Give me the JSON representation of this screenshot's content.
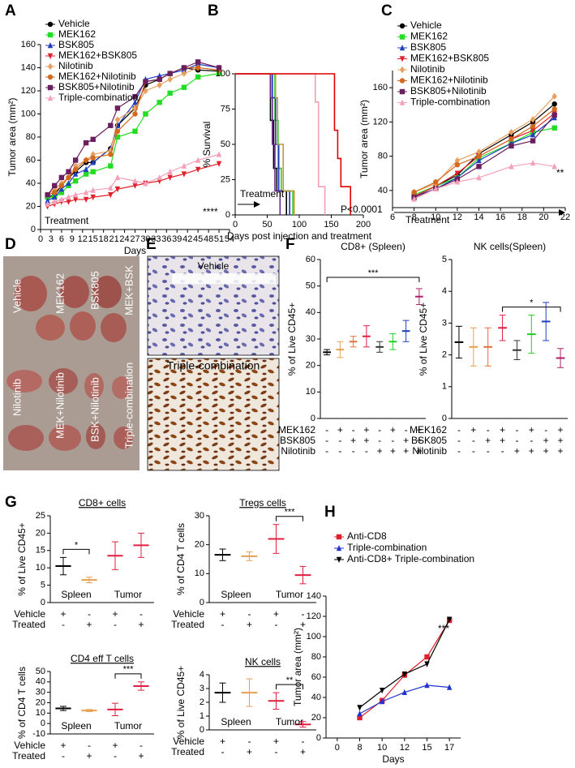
{
  "chart_data": [
    {
      "type": "line",
      "panel": "A",
      "xlabel": "Days",
      "ylabel": "Tumor area (mm²)",
      "xlim": [
        0,
        54
      ],
      "xticks": [
        0,
        3,
        6,
        9,
        12,
        15,
        18,
        21,
        24,
        27,
        30,
        33,
        36,
        39,
        42,
        45,
        48,
        51,
        54
      ],
      "ylim": [
        0,
        160
      ],
      "yticks": [
        0,
        20,
        40,
        60,
        80,
        100,
        120,
        140,
        160
      ],
      "x": [
        2,
        4,
        6,
        8,
        10,
        13,
        15,
        20,
        22,
        27,
        30,
        34,
        37,
        41,
        45,
        51
      ],
      "legend": true,
      "annotations": [
        "Treatment",
        "****"
      ],
      "series": [
        {
          "name": "Vehicle",
          "color": "#000000",
          "marker": "circle",
          "values": [
            28,
            30,
            38,
            45,
            50,
            58,
            58,
            70,
            90,
            105,
            125,
            130,
            135,
            140,
            138,
            137
          ]
        },
        {
          "name": "MEK162",
          "color": "#22dd22",
          "marker": "square",
          "values": [
            28,
            28,
            32,
            38,
            42,
            48,
            50,
            55,
            80,
            85,
            100,
            110,
            118,
            123,
            132,
            135
          ]
        },
        {
          "name": "BSK805",
          "color": "#1f3fbf",
          "marker": "triangle",
          "values": [
            25,
            28,
            35,
            40,
            48,
            52,
            58,
            70,
            90,
            110,
            130,
            133,
            135,
            138,
            143,
            140
          ]
        },
        {
          "name": "MEK162+BSK805",
          "color": "#e0202a",
          "marker": "triangle-down",
          "values": [
            20,
            22,
            24,
            24,
            26,
            26,
            28,
            30,
            35,
            38,
            40,
            42,
            45,
            48,
            52,
            57
          ]
        },
        {
          "name": "Nilotinib",
          "color": "#e8a060",
          "marker": "diamond",
          "values": [
            30,
            35,
            40,
            45,
            55,
            60,
            65,
            68,
            95,
            105,
            120,
            125,
            130,
            135,
            140,
            138
          ]
        },
        {
          "name": "MEK162+Nilotinib",
          "color": "#d2691e",
          "marker": "circle",
          "values": [
            30,
            32,
            38,
            45,
            52,
            60,
            62,
            65,
            85,
            100,
            128,
            130,
            135,
            140,
            140,
            138
          ]
        },
        {
          "name": "BSK805+Nilotinib",
          "color": "#6b1f5f",
          "marker": "square",
          "values": [
            30,
            38,
            45,
            50,
            60,
            75,
            78,
            90,
            105,
            115,
            128,
            130,
            135,
            140,
            145,
            140
          ]
        },
        {
          "name": "Triple-combination",
          "color": "#f4a0b8",
          "marker": "triangle",
          "values": [
            22,
            24,
            26,
            28,
            30,
            32,
            34,
            36,
            45,
            42,
            40,
            45,
            50,
            55,
            60,
            65
          ]
        }
      ]
    },
    {
      "type": "step",
      "panel": "B",
      "xlabel": "Days post injection and treatment",
      "ylabel": "% Survival",
      "xlim": [
        0,
        200
      ],
      "xticks": [
        0,
        50,
        100,
        150,
        200
      ],
      "ylim": [
        0,
        100
      ],
      "yticks": [
        0,
        25,
        50,
        75,
        100
      ],
      "annotations": [
        "Treatment",
        "P<0.0001"
      ],
      "series": [
        {
          "color": "#000000",
          "x": [
            0,
            55,
            60,
            65,
            80
          ],
          "values": [
            100,
            67,
            33,
            17,
            0
          ]
        },
        {
          "color": "#33cc33",
          "x": [
            0,
            62,
            67,
            72,
            90
          ],
          "values": [
            100,
            67,
            33,
            17,
            0
          ]
        },
        {
          "color": "#2233cc",
          "x": [
            0,
            58,
            63,
            68,
            85
          ],
          "values": [
            100,
            83,
            50,
            17,
            0
          ]
        },
        {
          "color": "#6b2a8a",
          "x": [
            0,
            55,
            58,
            62,
            70
          ],
          "values": [
            100,
            83,
            50,
            17,
            0
          ]
        },
        {
          "color": "#b8a030",
          "x": [
            0,
            63,
            66,
            75,
            92
          ],
          "values": [
            100,
            83,
            50,
            17,
            0
          ]
        },
        {
          "color": "#f0a0b0",
          "x": [
            0,
            125,
            130,
            140
          ],
          "values": [
            100,
            80,
            20,
            0
          ]
        },
        {
          "color": "#e00000",
          "x": [
            0,
            155,
            160,
            165,
            180
          ],
          "values": [
            100,
            60,
            40,
            20,
            0
          ]
        }
      ]
    },
    {
      "type": "line",
      "panel": "C",
      "ylabel": "Tumor area (mm²)",
      "xlim": [
        6,
        22
      ],
      "xticks": [
        6,
        8,
        10,
        12,
        14,
        16,
        18,
        20,
        22
      ],
      "ylim": [
        20,
        180
      ],
      "yticks": [
        40,
        80,
        120,
        160
      ],
      "x": [
        8,
        10,
        12,
        14,
        17,
        19,
        21
      ],
      "legend": true,
      "annotations": [
        "Treatment",
        "**"
      ],
      "series": [
        {
          "name": "Vehicle",
          "color": "#000000",
          "marker": "circle",
          "values": [
            33,
            45,
            58,
            83,
            105,
            120,
            141
          ]
        },
        {
          "name": "MEK162",
          "color": "#22dd22",
          "marker": "square",
          "values": [
            35,
            45,
            55,
            78,
            95,
            108,
            113
          ]
        },
        {
          "name": "BSK805",
          "color": "#1f3fbf",
          "marker": "triangle",
          "values": [
            33,
            42,
            55,
            75,
            95,
            105,
            125
          ]
        },
        {
          "name": "MEK162+BSK805",
          "color": "#e0202a",
          "marker": "triangle-down",
          "values": [
            33,
            45,
            60,
            80,
            100,
            110,
            130
          ]
        },
        {
          "name": "Nilotinib",
          "color": "#e8a060",
          "marker": "diamond",
          "values": [
            38,
            48,
            75,
            85,
            108,
            123,
            150
          ]
        },
        {
          "name": "MEK162+Nilotinib",
          "color": "#d2691e",
          "marker": "circle",
          "values": [
            38,
            50,
            70,
            80,
            100,
            115,
            135
          ]
        },
        {
          "name": "BSK805+Nilotinib",
          "color": "#6b1f5f",
          "marker": "square",
          "values": [
            32,
            42,
            53,
            68,
            92,
            98,
            128
          ]
        },
        {
          "name": "Triple-combination",
          "color": "#f4a0b8",
          "marker": "triangle",
          "values": [
            30,
            42,
            50,
            55,
            68,
            72,
            68
          ]
        }
      ]
    },
    {
      "type": "dot",
      "panel": "F",
      "title": "CD8+ (Spleen)",
      "ylabel": "% of Live CD45+",
      "ylim": [
        0,
        60
      ],
      "yticks": [
        0,
        10,
        20,
        30,
        40,
        50,
        60
      ],
      "significance": "***",
      "values": [
        25,
        26,
        29,
        31,
        27,
        29,
        33,
        46
      ],
      "errors": [
        1,
        3,
        2,
        4,
        2,
        3,
        4,
        3
      ],
      "colors": [
        "#000000",
        "#e8a050",
        "#e07040",
        "#e02040",
        "#333333",
        "#22cc22",
        "#1f3fbf",
        "#b0206a"
      ],
      "rows": [
        {
          "name": "MEK162",
          "marks": [
            "-",
            "+",
            "-",
            "+",
            "-",
            "+",
            "-",
            "+"
          ]
        },
        {
          "name": "BSK805",
          "marks": [
            "-",
            "-",
            "+",
            "+",
            "-",
            "-",
            "+",
            "+"
          ]
        },
        {
          "name": "Nilotinib",
          "marks": [
            "-",
            "-",
            "-",
            "-",
            "+",
            "+",
            "+",
            "+"
          ]
        }
      ]
    },
    {
      "type": "dot",
      "title": "NK cells(Spleen)",
      "ylabel": "% of Live CD45+",
      "ylim": [
        0,
        5
      ],
      "yticks": [
        0,
        1,
        2,
        3,
        4,
        5
      ],
      "significance": "*",
      "values": [
        2.4,
        2.25,
        2.25,
        2.85,
        2.15,
        2.65,
        3.05,
        1.9
      ],
      "errors": [
        0.5,
        0.6,
        0.6,
        0.4,
        0.3,
        0.6,
        0.6,
        0.3
      ],
      "colors": [
        "#000000",
        "#e8a050",
        "#e07040",
        "#e02040",
        "#333333",
        "#22cc22",
        "#1f3fbf",
        "#b0206a"
      ],
      "rows": [
        {
          "name": "MEK162",
          "marks": [
            "-",
            "+",
            "-",
            "+",
            "-",
            "+",
            "-",
            "+"
          ]
        },
        {
          "name": "BSK805",
          "marks": [
            "-",
            "-",
            "+",
            "+",
            "-",
            "-",
            "+",
            "+"
          ]
        },
        {
          "name": "Nilotinib",
          "marks": [
            "-",
            "-",
            "-",
            "-",
            "+",
            "+",
            "+",
            "+"
          ]
        }
      ]
    },
    {
      "type": "dot",
      "panel": "G",
      "title": "CD8+ cells",
      "ylabel": "% of Live CD45+",
      "ylim": [
        0,
        25
      ],
      "yticks": [
        0,
        5,
        10,
        15,
        20,
        25
      ],
      "significance": "*",
      "values": [
        10.5,
        6.5,
        13.5,
        16.5
      ],
      "errors": [
        2.5,
        0.8,
        4,
        3.5
      ],
      "colors": [
        "#000000",
        "#e8a050",
        "#e02040",
        "#e02040"
      ],
      "group_labels": [
        "Spleen",
        "Tumor"
      ],
      "rows": [
        {
          "name": "Vehicle",
          "marks": [
            "+",
            "-",
            "+",
            "-"
          ]
        },
        {
          "name": "Treated",
          "marks": [
            "-",
            "+",
            "-",
            "+"
          ]
        }
      ]
    },
    {
      "type": "dot",
      "title": "Tregs cells",
      "ylabel": "% of CD4 T cells",
      "ylim": [
        0,
        30
      ],
      "yticks": [
        0,
        10,
        20,
        30
      ],
      "significance": "***",
      "values": [
        16.5,
        16,
        22,
        9.5
      ],
      "errors": [
        2,
        1.5,
        5,
        3
      ],
      "colors": [
        "#000000",
        "#e8a050",
        "#e02040",
        "#e02040"
      ],
      "group_labels": [
        "Spleen",
        "Tumor"
      ],
      "rows": [
        {
          "name": "Vehicle",
          "marks": [
            "+",
            "-",
            "+",
            "-"
          ]
        },
        {
          "name": "Treated",
          "marks": [
            "-",
            "+",
            "-",
            "+"
          ]
        }
      ]
    },
    {
      "type": "dot",
      "title": "CD4 eff T cells",
      "ylabel": "% of CD4 T cells",
      "ylim": [
        -10,
        50
      ],
      "yticks": [
        -10,
        0,
        10,
        20,
        30,
        40,
        50
      ],
      "significance": "***",
      "values": [
        14.5,
        12.5,
        13.5,
        36
      ],
      "errors": [
        2,
        1,
        6,
        4
      ],
      "colors": [
        "#000000",
        "#e8a050",
        "#e02040",
        "#e02040"
      ],
      "group_labels": [
        "Spleen",
        "Tumor"
      ],
      "rows": [
        {
          "name": "Vehicle",
          "marks": [
            "+",
            "-",
            "+",
            "-"
          ]
        },
        {
          "name": "Treated",
          "marks": [
            "-",
            "+",
            "-",
            "+"
          ]
        }
      ]
    },
    {
      "type": "dot",
      "title": "NK cells",
      "ylabel": "% of Live CD45+",
      "ylim": [
        0,
        4
      ],
      "yticks": [
        0,
        1,
        2,
        3,
        4
      ],
      "significance": "**",
      "values": [
        2.7,
        2.7,
        2.1,
        0.4
      ],
      "errors": [
        0.7,
        1,
        0.6,
        0.2
      ],
      "colors": [
        "#000000",
        "#e8a050",
        "#e02040",
        "#e02040"
      ],
      "group_labels": [
        "Spleen",
        "Tumor"
      ],
      "rows": [
        {
          "name": "Vehicle",
          "marks": [
            "+",
            "-",
            "+",
            "-"
          ]
        },
        {
          "name": "Treated",
          "marks": [
            "-",
            "+",
            "-",
            "+"
          ]
        }
      ]
    },
    {
      "type": "line",
      "panel": "H",
      "xlabel": "Days",
      "ylabel": "Tumor area (mm²)",
      "categories": [
        "0",
        "8",
        "10",
        "12",
        "15",
        "17"
      ],
      "ylim": [
        0,
        140
      ],
      "yticks": [
        0,
        20,
        40,
        60,
        80,
        100,
        120,
        140
      ],
      "legend": true,
      "annotations": [
        "***"
      ],
      "series": [
        {
          "name": "Anti-CD8",
          "color": "#e0202a",
          "marker": "square",
          "values": [
            null,
            20,
            37,
            62,
            80,
            116
          ]
        },
        {
          "name": "Triple-combination",
          "color": "#2233cc",
          "marker": "triangle",
          "values": [
            null,
            24,
            36,
            45,
            52,
            50
          ]
        },
        {
          "name": "Anti-CD8+ Triple-combination",
          "color": "#000000",
          "marker": "triangle-down",
          "values": [
            null,
            30,
            47,
            63,
            73,
            117
          ]
        }
      ]
    }
  ],
  "images": [
    {
      "panel": "D",
      "labels": [
        "Vehicle",
        "MEK162",
        "BSK805",
        "MEK+BSK",
        "Nilotinib",
        "MEK+Nilotinib",
        "BSK+Nilotinib",
        "Triple-combination"
      ]
    },
    {
      "panel": "E",
      "labels": [
        "Vehicle",
        "Triple-combination"
      ]
    }
  ]
}
